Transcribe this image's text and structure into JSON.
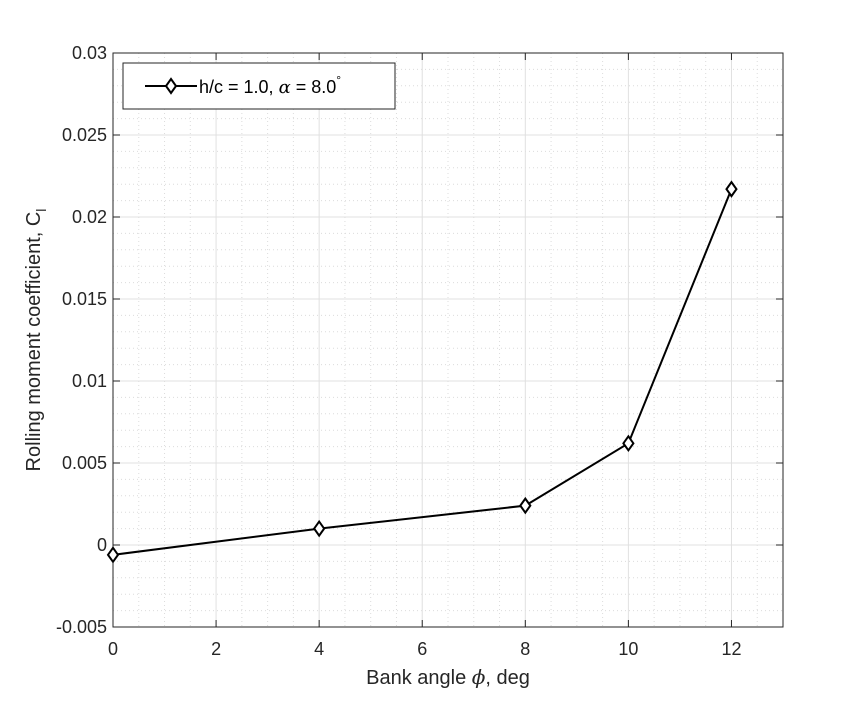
{
  "chart_data": {
    "type": "line",
    "x": [
      0,
      4,
      8,
      10,
      12
    ],
    "series": [
      {
        "name": "h/c = 1.0, α = 8.0°",
        "name_parts": {
          "prefix": "h/c = 1.0, ",
          "symbol": "α",
          "suffix": " = 8.0",
          "superscript": "°"
        },
        "values": [
          -0.0006,
          0.001,
          0.0024,
          0.0062,
          0.0217
        ],
        "color": "#000000",
        "marker": "diamond"
      }
    ],
    "xlabel": {
      "prefix": "Bank angle ",
      "symbol": "ϕ",
      "suffix": ", deg"
    },
    "ylabel": {
      "text": "Rolling moment coefficient, C",
      "subscript": "l"
    },
    "xlim": [
      0,
      13
    ],
    "ylim": [
      -0.005,
      0.03
    ],
    "xticks": [
      0,
      2,
      4,
      6,
      8,
      10,
      12
    ],
    "xtick_labels": [
      "0",
      "2",
      "4",
      "6",
      "8",
      "10",
      "12"
    ],
    "yticks": [
      -0.005,
      0,
      0.005,
      0.01,
      0.015,
      0.02,
      0.025,
      0.03
    ],
    "ytick_labels": [
      "-0.005",
      "0",
      "0.005",
      "0.01",
      "0.015",
      "0.02",
      "0.025",
      "0.03"
    ],
    "grid": true,
    "minor_grid": true,
    "legend_position": "top-left"
  }
}
